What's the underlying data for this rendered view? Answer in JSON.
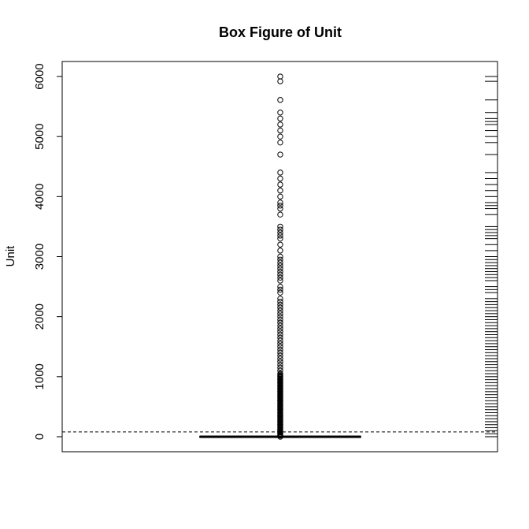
{
  "chart_data": {
    "type": "box",
    "title": "Box Figure of Unit",
    "xlabel": "",
    "ylabel": "Unit",
    "ylim": [
      -250,
      6250
    ],
    "yticks": [
      0,
      1000,
      2000,
      3000,
      4000,
      5000,
      6000
    ],
    "ytick_labels": [
      "0",
      "1000",
      "2000",
      "3000",
      "4000",
      "5000",
      "6000"
    ],
    "box": {
      "min": 0,
      "q1": 0,
      "median": 0,
      "q3": 0,
      "max": 0
    },
    "reference_line": {
      "value": 80,
      "style": "dashed"
    },
    "outliers": [
      6000,
      5920,
      5610,
      5400,
      5300,
      5200,
      5100,
      5000,
      4900,
      4700,
      4400,
      4300,
      4200,
      4100,
      4000,
      3900,
      3850,
      3800,
      3700,
      3500,
      3450,
      3400,
      3350,
      3300,
      3200,
      3100,
      3000,
      2950,
      2900,
      2850,
      2800,
      2750,
      2700,
      2650,
      2600,
      2500,
      2450,
      2400,
      2300,
      2250,
      2200,
      2150,
      2100,
      2050,
      2000,
      1950,
      1900,
      1850,
      1800,
      1750,
      1700,
      1650,
      1600,
      1550,
      1500,
      1450,
      1400,
      1350,
      1300,
      1250,
      1200,
      1150,
      1100,
      1050,
      1000,
      950,
      900,
      850,
      800,
      750,
      700,
      650,
      600,
      550,
      500,
      450,
      400,
      350,
      300,
      250,
      200,
      150,
      100,
      50,
      20
    ],
    "rug": [
      6000,
      5920,
      5610,
      5400,
      5300,
      5250,
      5200,
      5100,
      5000,
      4900,
      4700,
      4400,
      4300,
      4200,
      4100,
      4000,
      3900,
      3850,
      3800,
      3700,
      3500,
      3450,
      3400,
      3350,
      3300,
      3200,
      3100,
      3000,
      2950,
      2900,
      2850,
      2800,
      2750,
      2700,
      2650,
      2600,
      2500,
      2450,
      2400,
      2300,
      2250,
      2200,
      2150,
      2100,
      2050,
      2000,
      1950,
      1900,
      1850,
      1800,
      1750,
      1700,
      1650,
      1600,
      1550,
      1500,
      1450,
      1400,
      1350,
      1300,
      1250,
      1200,
      1150,
      1100,
      1050,
      1000,
      950,
      900,
      850,
      800,
      750,
      700,
      650,
      600,
      550,
      500,
      450,
      400,
      350,
      300,
      250,
      200,
      150,
      100,
      50,
      0
    ],
    "grid": false,
    "legend": "none",
    "color": "#000000"
  }
}
